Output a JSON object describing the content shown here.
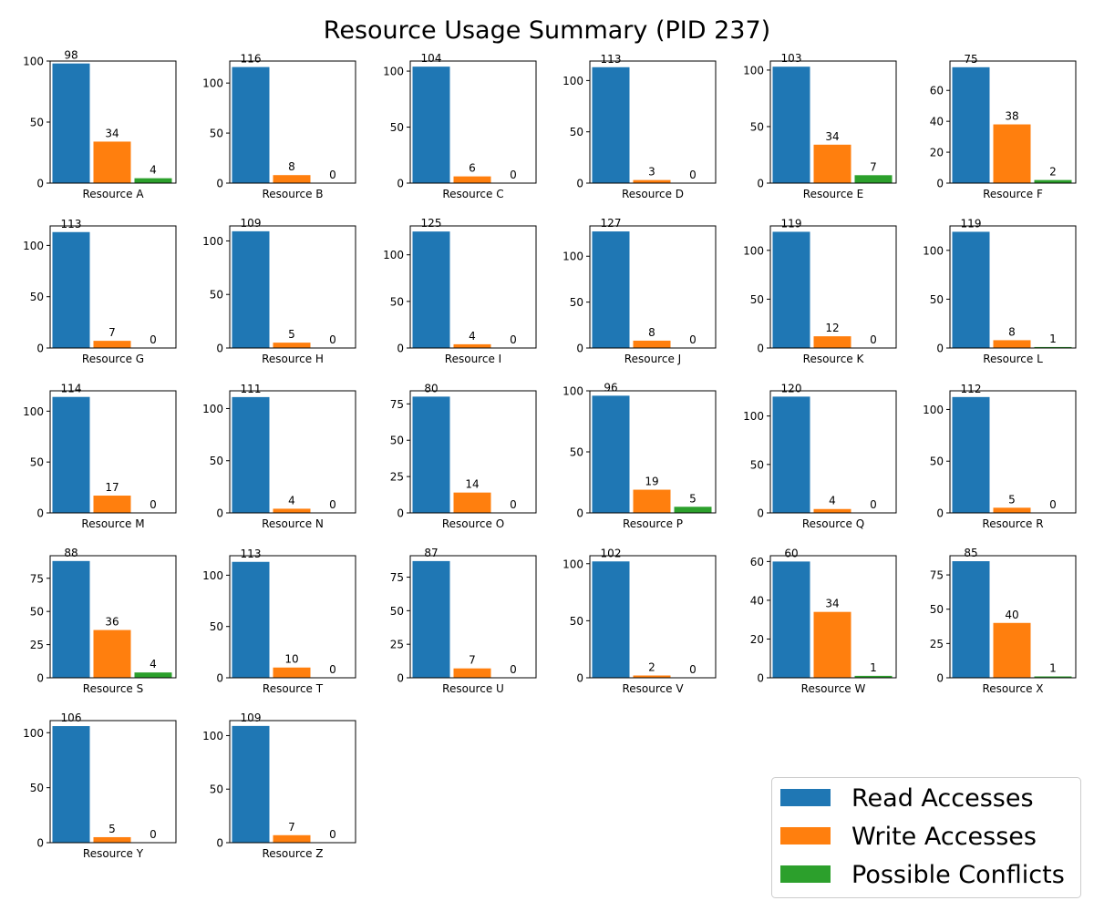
{
  "colors": {
    "read": "#1f77b4",
    "write": "#ff7f0e",
    "conflict": "#2ca02c"
  },
  "chart_data": {
    "type": "bar",
    "title": "Resource Usage Summary (PID 237)",
    "series_names": [
      "Read Accesses",
      "Write Accesses",
      "Possible Conflicts"
    ],
    "legend_position": "bottom-right",
    "grid": false,
    "panels": [
      {
        "resource": "Resource A",
        "values": [
          98,
          34,
          4
        ],
        "ylim": [
          0,
          100
        ],
        "yticks": [
          0,
          50,
          100
        ]
      },
      {
        "resource": "Resource B",
        "values": [
          116,
          8,
          0
        ],
        "ylim": [
          0,
          122
        ],
        "yticks": [
          0,
          50,
          100
        ]
      },
      {
        "resource": "Resource C",
        "values": [
          104,
          6,
          0
        ],
        "ylim": [
          0,
          109
        ],
        "yticks": [
          0,
          50,
          100
        ]
      },
      {
        "resource": "Resource D",
        "values": [
          113,
          3,
          0
        ],
        "ylim": [
          0,
          119
        ],
        "yticks": [
          0,
          50,
          100
        ]
      },
      {
        "resource": "Resource E",
        "values": [
          103,
          34,
          7
        ],
        "ylim": [
          0,
          108
        ],
        "yticks": [
          0,
          50,
          100
        ]
      },
      {
        "resource": "Resource F",
        "values": [
          75,
          38,
          2
        ],
        "ylim": [
          0,
          79
        ],
        "yticks": [
          0,
          20,
          40,
          60
        ]
      },
      {
        "resource": "Resource G",
        "values": [
          113,
          7,
          0
        ],
        "ylim": [
          0,
          119
        ],
        "yticks": [
          0,
          50,
          100
        ]
      },
      {
        "resource": "Resource H",
        "values": [
          109,
          5,
          0
        ],
        "ylim": [
          0,
          114
        ],
        "yticks": [
          0,
          50,
          100
        ]
      },
      {
        "resource": "Resource I",
        "values": [
          125,
          4,
          0
        ],
        "ylim": [
          0,
          131
        ],
        "yticks": [
          0,
          50,
          100
        ]
      },
      {
        "resource": "Resource J",
        "values": [
          127,
          8,
          0
        ],
        "ylim": [
          0,
          133
        ],
        "yticks": [
          0,
          50,
          100
        ]
      },
      {
        "resource": "Resource K",
        "values": [
          119,
          12,
          0
        ],
        "ylim": [
          0,
          125
        ],
        "yticks": [
          0,
          50,
          100
        ]
      },
      {
        "resource": "Resource L",
        "values": [
          119,
          8,
          1
        ],
        "ylim": [
          0,
          125
        ],
        "yticks": [
          0,
          50,
          100
        ]
      },
      {
        "resource": "Resource M",
        "values": [
          114,
          17,
          0
        ],
        "ylim": [
          0,
          120
        ],
        "yticks": [
          0,
          50,
          100
        ]
      },
      {
        "resource": "Resource N",
        "values": [
          111,
          4,
          0
        ],
        "ylim": [
          0,
          117
        ],
        "yticks": [
          0,
          50,
          100
        ]
      },
      {
        "resource": "Resource O",
        "values": [
          80,
          14,
          0
        ],
        "ylim": [
          0,
          84
        ],
        "yticks": [
          0,
          25,
          50,
          75
        ]
      },
      {
        "resource": "Resource P",
        "values": [
          96,
          19,
          5
        ],
        "ylim": [
          0,
          100
        ],
        "yticks": [
          0,
          50,
          100
        ]
      },
      {
        "resource": "Resource Q",
        "values": [
          120,
          4,
          0
        ],
        "ylim": [
          0,
          126
        ],
        "yticks": [
          0,
          50,
          100
        ]
      },
      {
        "resource": "Resource R",
        "values": [
          112,
          5,
          0
        ],
        "ylim": [
          0,
          118
        ],
        "yticks": [
          0,
          50,
          100
        ]
      },
      {
        "resource": "Resource S",
        "values": [
          88,
          36,
          4
        ],
        "ylim": [
          0,
          92
        ],
        "yticks": [
          0,
          25,
          50,
          75
        ]
      },
      {
        "resource": "Resource T",
        "values": [
          113,
          10,
          0
        ],
        "ylim": [
          0,
          119
        ],
        "yticks": [
          0,
          50,
          100
        ]
      },
      {
        "resource": "Resource U",
        "values": [
          87,
          7,
          0
        ],
        "ylim": [
          0,
          91
        ],
        "yticks": [
          0,
          25,
          50,
          75
        ]
      },
      {
        "resource": "Resource V",
        "values": [
          102,
          2,
          0
        ],
        "ylim": [
          0,
          107
        ],
        "yticks": [
          0,
          50,
          100
        ]
      },
      {
        "resource": "Resource W",
        "values": [
          60,
          34,
          1
        ],
        "ylim": [
          0,
          63
        ],
        "yticks": [
          0,
          20,
          40,
          60
        ]
      },
      {
        "resource": "Resource X",
        "values": [
          85,
          40,
          1
        ],
        "ylim": [
          0,
          89
        ],
        "yticks": [
          0,
          25,
          50,
          75
        ]
      },
      {
        "resource": "Resource Y",
        "values": [
          106,
          5,
          0
        ],
        "ylim": [
          0,
          111
        ],
        "yticks": [
          0,
          50,
          100
        ]
      },
      {
        "resource": "Resource Z",
        "values": [
          109,
          7,
          0
        ],
        "ylim": [
          0,
          114
        ],
        "yticks": [
          0,
          50,
          100
        ]
      }
    ]
  }
}
